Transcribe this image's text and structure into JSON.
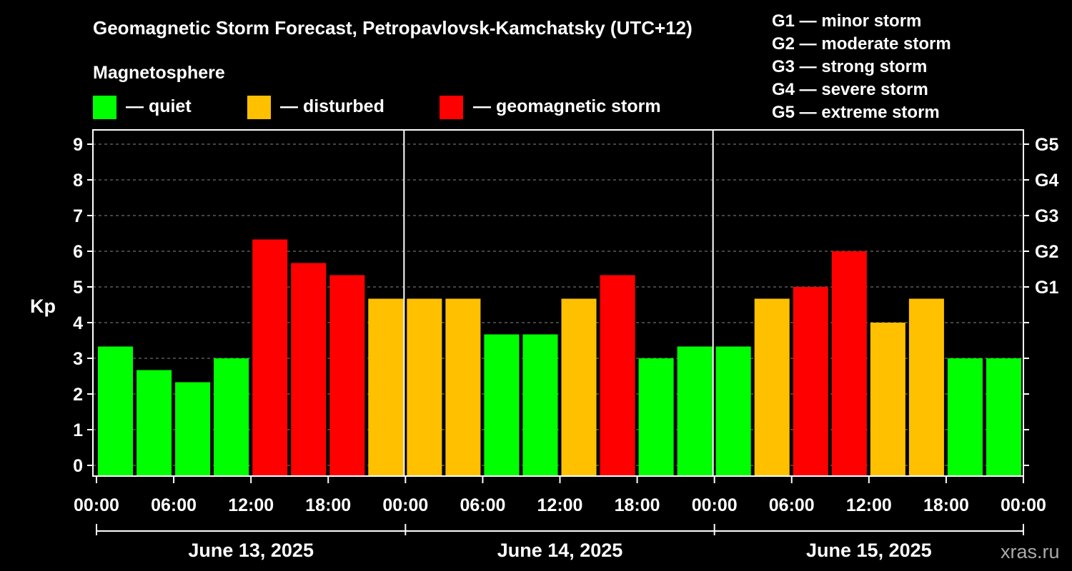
{
  "chart_data": {
    "type": "bar",
    "title": "Geomagnetic Storm Forecast, Petropavlovsk-Kamchatsky (UTC+12)",
    "legend": {
      "heading": "Magnetosphere",
      "items": [
        {
          "key": "quiet",
          "label": "— quiet",
          "color": "#00ff00"
        },
        {
          "key": "disturbed",
          "label": "— disturbed",
          "color": "#ffc000"
        },
        {
          "key": "storm",
          "label": "— geomagnetic storm",
          "color": "#ff0000"
        }
      ],
      "storm_levels": [
        "G1 — minor storm",
        "G2 — moderate storm",
        "G3 — strong storm",
        "G4 — severe storm",
        "G5 — extreme storm"
      ]
    },
    "ylabel": "Kp",
    "ylim": [
      0,
      9.5
    ],
    "y_ticks": [
      0,
      1,
      2,
      3,
      4,
      5,
      6,
      7,
      8,
      9
    ],
    "right_axis_labels": [
      {
        "value": 5,
        "label": "G1"
      },
      {
        "value": 6,
        "label": "G2"
      },
      {
        "value": 7,
        "label": "G3"
      },
      {
        "value": 8,
        "label": "G4"
      },
      {
        "value": 9,
        "label": "G5"
      }
    ],
    "x_tick_labels": [
      "00:00",
      "06:00",
      "12:00",
      "18:00",
      "00:00",
      "06:00",
      "12:00",
      "18:00",
      "00:00",
      "06:00",
      "12:00",
      "18:00",
      "00:00"
    ],
    "days": [
      "June 13, 2025",
      "June 14, 2025",
      "June 15, 2025"
    ],
    "bars_per_day": 8,
    "values": [
      3.33,
      2.67,
      2.33,
      3.0,
      6.33,
      5.67,
      5.33,
      4.67,
      4.67,
      4.67,
      3.67,
      3.67,
      4.67,
      5.33,
      3.0,
      3.33,
      3.33,
      4.67,
      5.0,
      6.0,
      4.0,
      4.67,
      3.0,
      3.0
    ],
    "categories": [
      "quiet",
      "quiet",
      "quiet",
      "quiet",
      "storm",
      "storm",
      "storm",
      "disturbed",
      "disturbed",
      "disturbed",
      "quiet",
      "quiet",
      "disturbed",
      "storm",
      "quiet",
      "quiet",
      "quiet",
      "disturbed",
      "storm",
      "storm",
      "disturbed",
      "disturbed",
      "quiet",
      "quiet"
    ],
    "grid": "dashed horizontal at each Kp"
  },
  "watermark": "xras.ru"
}
